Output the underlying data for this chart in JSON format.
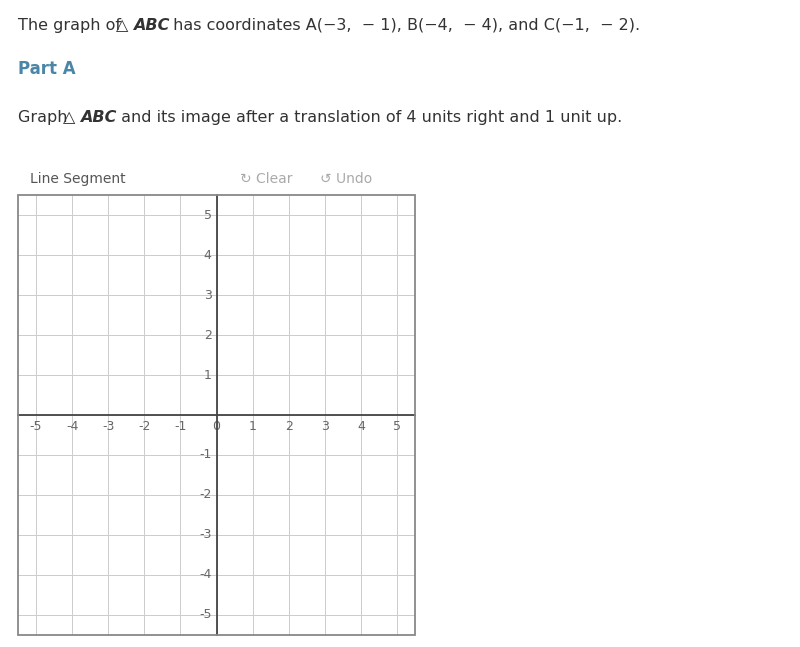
{
  "text_line1_plain": "The graph of ",
  "text_line1_triangle": "△ ",
  "text_line1_ABC": "ABC",
  "text_line1_rest": " has coordinates A(−3,  − 1), B(−4,  − 4), and C(−1,  − 2).",
  "part_label": "Part A",
  "instr_plain": "Graph ",
  "instr_triangle": "△ ",
  "instr_ABC": "ABC",
  "instr_rest": " and its image after a translation of 4 units right and 1 unit up.",
  "toolbar_label": "Line Segment",
  "toolbar_clear": "↻ Clear",
  "toolbar_undo": "↺ Undo",
  "xlim": [
    -5.5,
    5.5
  ],
  "ylim": [
    -5.5,
    5.5
  ],
  "xticks": [
    -5,
    -4,
    -3,
    -2,
    -1,
    0,
    1,
    2,
    3,
    4,
    5
  ],
  "yticks": [
    -5,
    -4,
    -3,
    -2,
    -1,
    0,
    1,
    2,
    3,
    4,
    5
  ],
  "grid_color": "#cccccc",
  "axis_color": "#444444",
  "background_color": "#ffffff",
  "plot_bg_color": "#ffffff",
  "border_color": "#888888",
  "tick_label_color": "#666666",
  "text_color": "#333333",
  "part_color": "#4a86a8",
  "toolbar_bg": "#f5f5f5",
  "toolbar_border": "#cccccc",
  "toolbar_text_color": "#555555",
  "toolbar_action_color": "#aaaaaa",
  "figsize": [
    8.0,
    6.47
  ],
  "dpi": 100
}
